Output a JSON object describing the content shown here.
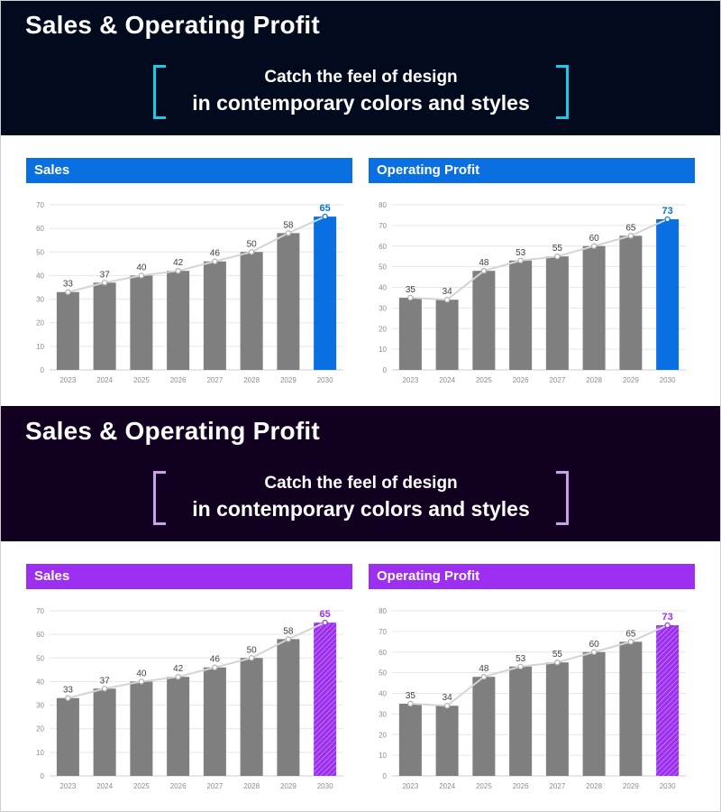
{
  "sections": [
    {
      "banner_title": "Sales & Operating Profit",
      "tagline_line1": "Catch the feel of design",
      "tagline_line2": "in contemporary colors and styles",
      "colors": {
        "banner_bg": "#020a1e",
        "bracket": "#1fc9e6",
        "accent": "#0a6fe0",
        "header_bg": "#0a6fe0"
      },
      "highlight_style": "solid"
    },
    {
      "banner_title": "Sales & Operating Profit",
      "tagline_line1": "Catch the feel of design",
      "tagline_line2": "in contemporary colors and styles",
      "colors": {
        "banner_bg": "#11001f",
        "bracket": "#c9a2ea",
        "accent": "#9d2ff0",
        "header_bg": "#9d2ff0"
      },
      "highlight_style": "hatched"
    }
  ],
  "chart_data": [
    {
      "type": "bar",
      "section": 0,
      "panel": "sales",
      "title": "Sales",
      "categories": [
        "2023",
        "2024",
        "2025",
        "2026",
        "2027",
        "2028",
        "2029",
        "2030"
      ],
      "values": [
        33,
        37,
        40,
        42,
        46,
        50,
        58,
        65
      ],
      "ylim": [
        0,
        70
      ],
      "yticks": [
        0,
        10,
        20,
        30,
        40,
        50,
        60,
        70
      ],
      "trend_line": true,
      "highlight_last": true,
      "xlabel": "",
      "ylabel": ""
    },
    {
      "type": "bar",
      "section": 0,
      "panel": "operating_profit",
      "title": "Operating Profit",
      "categories": [
        "2023",
        "2024",
        "2025",
        "2026",
        "2027",
        "2028",
        "2029",
        "2030"
      ],
      "values": [
        35,
        34,
        48,
        53,
        55,
        60,
        65,
        73
      ],
      "ylim": [
        0,
        80
      ],
      "yticks": [
        0,
        10,
        20,
        30,
        40,
        50,
        60,
        70,
        80
      ],
      "trend_line": true,
      "highlight_last": true,
      "xlabel": "",
      "ylabel": ""
    },
    {
      "type": "bar",
      "section": 1,
      "panel": "sales",
      "title": "Sales",
      "categories": [
        "2023",
        "2024",
        "2025",
        "2026",
        "2027",
        "2028",
        "2029",
        "2030"
      ],
      "values": [
        33,
        37,
        40,
        42,
        46,
        50,
        58,
        65
      ],
      "ylim": [
        0,
        70
      ],
      "yticks": [
        0,
        10,
        20,
        30,
        40,
        50,
        60,
        70
      ],
      "trend_line": true,
      "highlight_last": true,
      "xlabel": "",
      "ylabel": ""
    },
    {
      "type": "bar",
      "section": 1,
      "panel": "operating_profit",
      "title": "Operating Profit",
      "categories": [
        "2023",
        "2024",
        "2025",
        "2026",
        "2027",
        "2028",
        "2029",
        "2030"
      ],
      "values": [
        35,
        34,
        48,
        53,
        55,
        60,
        65,
        73
      ],
      "ylim": [
        0,
        80
      ],
      "yticks": [
        0,
        10,
        20,
        30,
        40,
        50,
        60,
        70,
        80
      ],
      "trend_line": true,
      "highlight_last": true,
      "xlabel": "",
      "ylabel": ""
    }
  ],
  "chart_colors": {
    "bar": "#7f7f7f",
    "line": "#d4d4d4",
    "marker_fill": "#ffffff",
    "grid": "#e6e6e6",
    "axis_text": "#8c8c8c",
    "label_text": "#3f3f3f"
  }
}
